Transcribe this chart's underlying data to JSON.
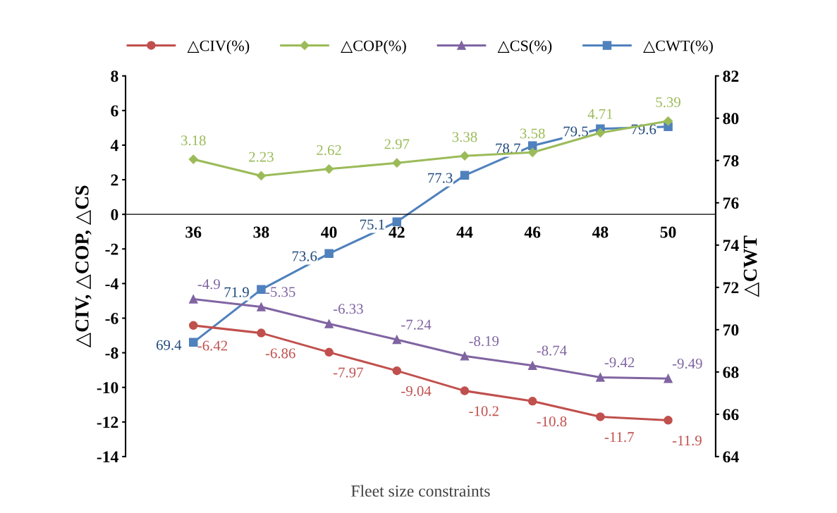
{
  "chart_data": {
    "type": "line",
    "xlabel": "Fleet size constraints",
    "ylabel": "△CIV, △COP, △CS",
    "y2label": "△CWT",
    "categories": [
      "36",
      "38",
      "40",
      "42",
      "44",
      "46",
      "48",
      "50"
    ],
    "series": [
      {
        "name": "△CIV(%)",
        "color": "#c0504d",
        "marker": "circle",
        "values": [
          -6.42,
          -6.86,
          -7.97,
          -9.04,
          -10.2,
          -10.8,
          -11.7,
          -11.9
        ]
      },
      {
        "name": "△COP(%)",
        "color": "#9bbb59",
        "marker": "diamond",
        "values": [
          3.18,
          2.23,
          2.62,
          2.97,
          3.38,
          3.58,
          4.71,
          5.39
        ]
      },
      {
        "name": "△CS(%)",
        "color": "#8064a2",
        "marker": "triangle",
        "values": [
          -4.9,
          -5.35,
          -6.33,
          -7.24,
          -8.19,
          -8.74,
          -9.42,
          -9.49
        ]
      },
      {
        "name": "△CWT(%)",
        "color": "#4f81bd",
        "marker": "square",
        "axis": "y2",
        "values": [
          69.4,
          71.9,
          73.6,
          75.1,
          77.3,
          78.7,
          79.5,
          79.6
        ]
      }
    ],
    "ylim": [
      -14,
      8
    ],
    "yticks": [
      -14,
      -12,
      -10,
      -8,
      -6,
      -4,
      -2,
      0,
      2,
      4,
      6,
      8
    ],
    "y2lim": [
      64,
      82
    ],
    "y2ticks": [
      64,
      66,
      68,
      70,
      72,
      74,
      76,
      78,
      80,
      82
    ],
    "data_labels": true,
    "legend": "top",
    "grid": false
  }
}
